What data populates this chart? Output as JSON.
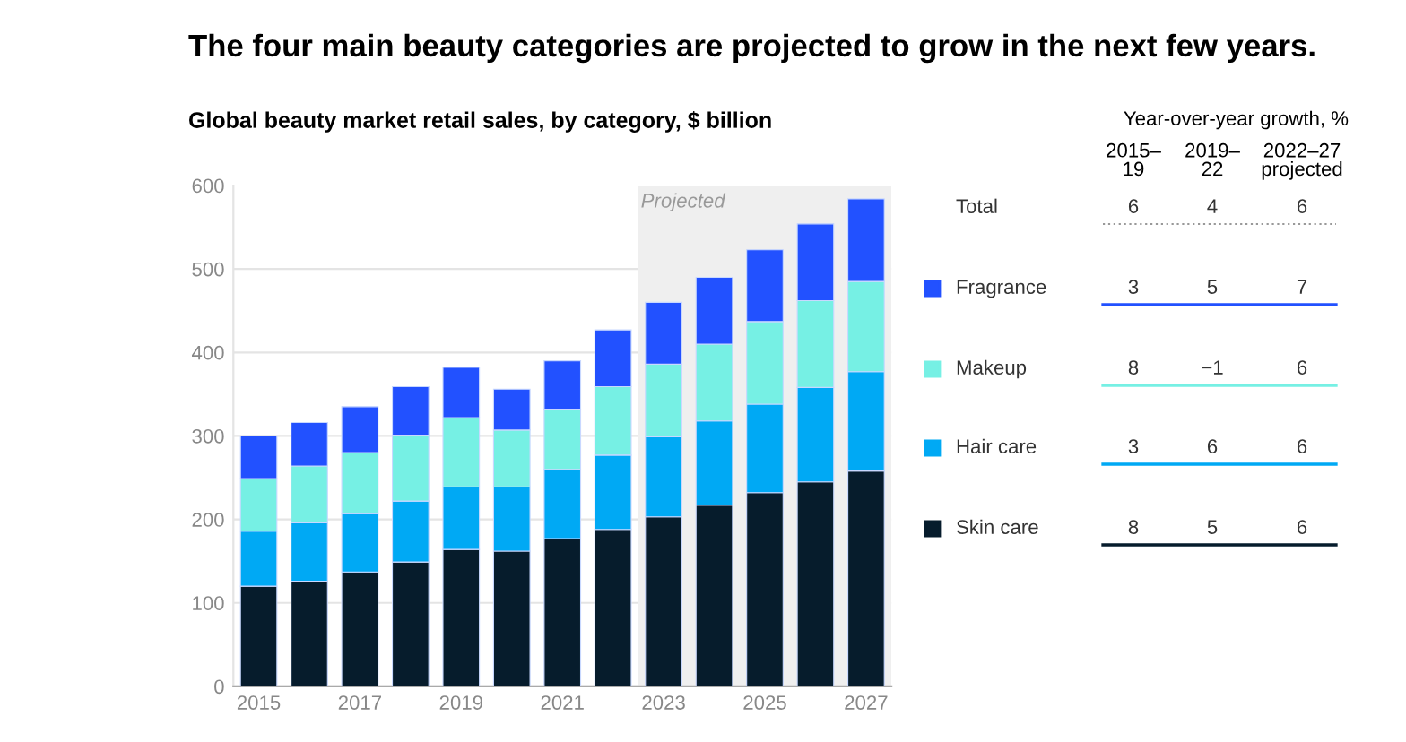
{
  "chart_data": {
    "type": "bar",
    "stacked": true,
    "title": "The four main beauty categories are projected to grow in the next few years.",
    "subtitle": "Global beauty market retail sales, by category, $ billion",
    "x": [
      2015,
      2016,
      2017,
      2018,
      2019,
      2020,
      2021,
      2022,
      2023,
      2024,
      2025,
      2026,
      2027
    ],
    "xlim": [
      2014.5,
      2027.5
    ],
    "xticks": [
      2015,
      2017,
      2019,
      2021,
      2023,
      2025,
      2027
    ],
    "ylim": [
      0,
      600
    ],
    "yticks": [
      0,
      100,
      200,
      300,
      400,
      500,
      600
    ],
    "grid": "y",
    "legend": "right",
    "series": [
      {
        "name": "Skin care",
        "color": "#061c2c",
        "values": [
          120,
          126,
          137,
          149,
          164,
          162,
          177,
          188,
          203,
          217,
          232,
          245,
          258
        ]
      },
      {
        "name": "Hair care",
        "color": "#00a9f4",
        "values": [
          66,
          70,
          70,
          73,
          75,
          77,
          83,
          89,
          96,
          101,
          106,
          113,
          119
        ]
      },
      {
        "name": "Makeup",
        "color": "#76f0e4",
        "values": [
          63,
          68,
          73,
          79,
          83,
          68,
          72,
          82,
          87,
          92,
          99,
          104,
          108
        ]
      },
      {
        "name": "Fragrance",
        "color": "#2251ff",
        "values": [
          51,
          52,
          55,
          58,
          60,
          49,
          58,
          68,
          74,
          80,
          86,
          92,
          99
        ]
      }
    ],
    "bands": [
      {
        "axis": "x",
        "from": 2022.5,
        "to": 2027.5,
        "label": "Projected",
        "color": "#efefef"
      }
    ],
    "annotations": [
      "Year-over-year growth, %",
      "2015–\n19",
      "2019–\n22",
      "2022–27\nprojected",
      "Total",
      "6",
      "4",
      "6",
      "3",
      "5",
      "7",
      "8",
      "−1",
      "6",
      "3",
      "6",
      "6",
      "8",
      "5",
      "6"
    ]
  }
}
